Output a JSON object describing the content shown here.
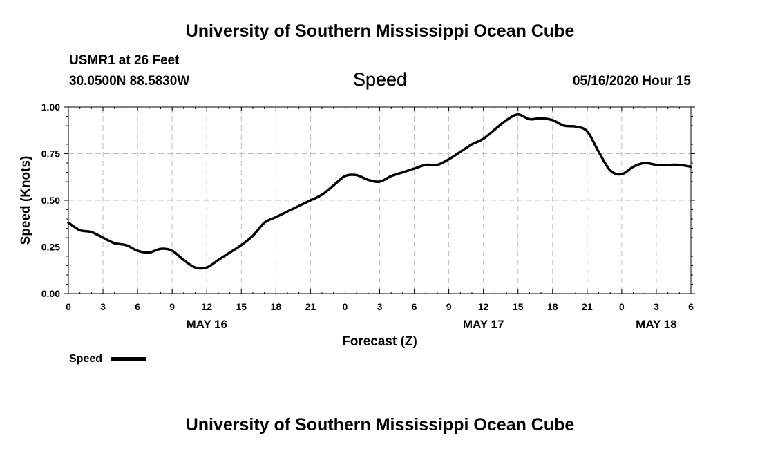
{
  "header": {
    "title": "University of Southern Mississippi Ocean Cube",
    "station": "USMR1 at 26 Feet",
    "coordinates": "30.0500N 88.5830W",
    "date_label": "05/16/2020 Hour 15"
  },
  "footer": {
    "title": "University of Southern Mississippi Ocean Cube"
  },
  "chart_data": {
    "type": "line",
    "title": "Speed",
    "xlabel": "Forecast (Z)",
    "ylabel": "Speed (Knots)",
    "xlim": [
      0,
      54
    ],
    "ylim": [
      0,
      1
    ],
    "grid": true,
    "legend": "bottom-left",
    "x_ticks": [
      0,
      3,
      6,
      9,
      12,
      15,
      18,
      21,
      24,
      27,
      30,
      33,
      36,
      39,
      42,
      45,
      48,
      51,
      54
    ],
    "x_tick_labels": [
      "0",
      "3",
      "6",
      "9",
      "12",
      "15",
      "18",
      "21",
      "0",
      "3",
      "6",
      "9",
      "12",
      "15",
      "18",
      "21",
      "0",
      "3",
      "6"
    ],
    "y_ticks": [
      0,
      0.25,
      0.5,
      0.75,
      1.0
    ],
    "y_tick_labels": [
      "0.00",
      "0.25",
      "0.50",
      "0.75",
      "1.00"
    ],
    "day_labels": [
      {
        "x": 12,
        "label": "MAY 16"
      },
      {
        "x": 36,
        "label": "MAY 17"
      },
      {
        "x": 51,
        "label": "MAY 18"
      }
    ],
    "series": [
      {
        "name": "Speed",
        "color": "#000000",
        "x": [
          0,
          1,
          2,
          3,
          4,
          5,
          6,
          7,
          8,
          9,
          10,
          11,
          12,
          13,
          14,
          15,
          16,
          17,
          18,
          19,
          20,
          21,
          22,
          23,
          24,
          25,
          26,
          27,
          28,
          29,
          30,
          31,
          32,
          33,
          34,
          35,
          36,
          37,
          38,
          39,
          40,
          41,
          42,
          43,
          44,
          45,
          46,
          47,
          48,
          49,
          50,
          51,
          52,
          53,
          54
        ],
        "values": [
          0.38,
          0.34,
          0.33,
          0.3,
          0.27,
          0.26,
          0.23,
          0.22,
          0.24,
          0.23,
          0.18,
          0.14,
          0.14,
          0.18,
          0.22,
          0.26,
          0.31,
          0.38,
          0.41,
          0.44,
          0.47,
          0.5,
          0.53,
          0.58,
          0.63,
          0.635,
          0.61,
          0.6,
          0.63,
          0.65,
          0.67,
          0.69,
          0.69,
          0.72,
          0.76,
          0.8,
          0.83,
          0.88,
          0.93,
          0.96,
          0.935,
          0.94,
          0.93,
          0.9,
          0.895,
          0.87,
          0.76,
          0.66,
          0.64,
          0.68,
          0.7,
          0.69,
          0.69,
          0.69,
          0.68
        ]
      }
    ]
  }
}
